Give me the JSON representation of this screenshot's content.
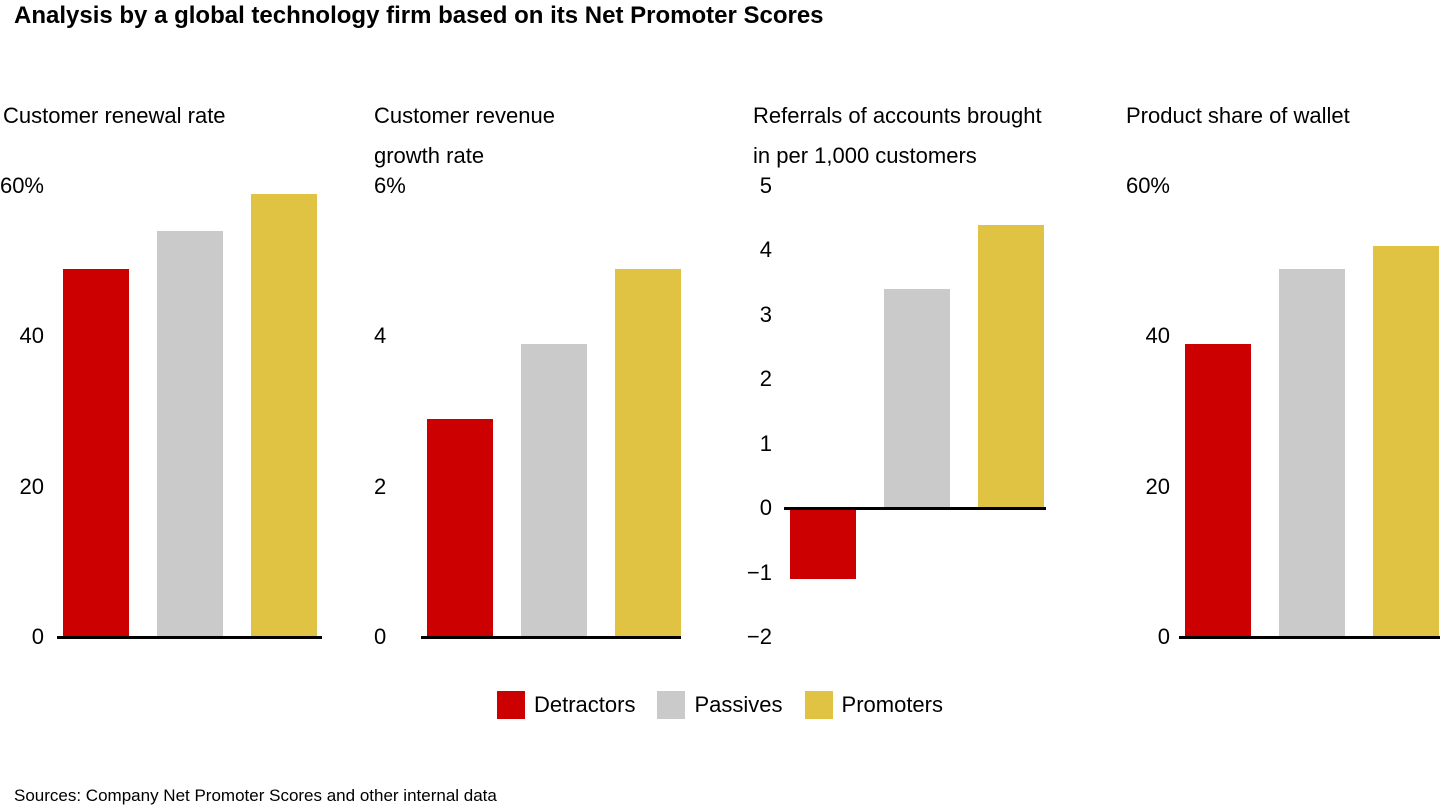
{
  "page": {
    "title": "Analysis by a global technology firm based on its Net Promoter Scores",
    "source": "Sources: Company Net Promoter Scores and other internal data"
  },
  "colors": {
    "detractors": "#cc0000",
    "passives": "#cacaca",
    "promoters": "#e0c342",
    "axis": "#000000",
    "background": "#ffffff"
  },
  "legend": {
    "position": "bottom-center",
    "items": [
      {
        "label": "Detractors",
        "color_key": "detractors"
      },
      {
        "label": "Passives",
        "color_key": "passives"
      },
      {
        "label": "Promoters",
        "color_key": "promoters"
      }
    ]
  },
  "chart_data": [
    {
      "type": "bar",
      "title": "Customer renewal rate",
      "categories": [
        "Detractors",
        "Passives",
        "Promoters"
      ],
      "values": [
        49,
        54,
        59
      ],
      "unit": "%",
      "ylim": [
        0,
        60
      ],
      "yticks": [
        0,
        20,
        40,
        60
      ],
      "ytick_labels": [
        "0",
        "20",
        "40",
        "60%"
      ],
      "grid": false,
      "legend_position": "shared-bottom"
    },
    {
      "type": "bar",
      "title": "Customer revenue\ngrowth rate",
      "categories": [
        "Detractors",
        "Passives",
        "Promoters"
      ],
      "values": [
        2.9,
        3.9,
        4.9
      ],
      "unit": "%",
      "ylim": [
        0,
        6
      ],
      "yticks": [
        0,
        2,
        4,
        6
      ],
      "ytick_labels": [
        "0",
        "2",
        "4",
        "6%"
      ],
      "grid": false,
      "legend_position": "shared-bottom"
    },
    {
      "type": "bar",
      "title": "Referrals of accounts brought\nin per 1,000 customers",
      "categories": [
        "Detractors",
        "Passives",
        "Promoters"
      ],
      "values": [
        -1.1,
        3.4,
        4.4
      ],
      "unit": "",
      "ylim": [
        -2,
        5
      ],
      "yticks": [
        -2,
        -1,
        0,
        1,
        2,
        3,
        4,
        5
      ],
      "ytick_labels": [
        "−2",
        "−1",
        "0",
        "1",
        "2",
        "3",
        "4",
        "5"
      ],
      "grid": false,
      "legend_position": "shared-bottom"
    },
    {
      "type": "bar",
      "title": "Product share of wallet",
      "categories": [
        "Detractors",
        "Passives",
        "Promoters"
      ],
      "values": [
        39,
        49,
        52
      ],
      "unit": "%",
      "ylim": [
        0,
        60
      ],
      "yticks": [
        0,
        20,
        40,
        60
      ],
      "ytick_labels": [
        "0",
        "20",
        "40",
        "60%"
      ],
      "grid": false,
      "legend_position": "shared-bottom"
    }
  ]
}
